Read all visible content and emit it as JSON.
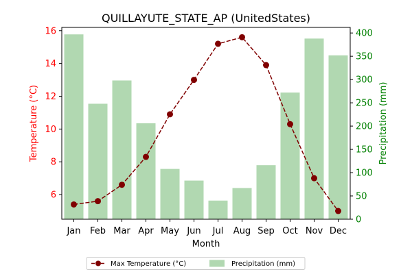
{
  "chart_data": {
    "type": "bar",
    "title": "QUILLAYUTE_STATE_AP (UnitedStates)",
    "xlabel": "Month",
    "ylabel_left": "Temperature (°C)",
    "ylabel_right": "Precipitation (mm)",
    "categories": [
      "Jan",
      "Feb",
      "Mar",
      "Apr",
      "May",
      "Jun",
      "Jul",
      "Aug",
      "Sep",
      "Oct",
      "Nov",
      "Dec"
    ],
    "ylim_left": [
      4.5,
      16.2
    ],
    "yticks_left": [
      6,
      8,
      10,
      12,
      14,
      16
    ],
    "ylim_right": [
      0,
      412
    ],
    "yticks_right": [
      0,
      50,
      100,
      150,
      200,
      250,
      300,
      350,
      400
    ],
    "series": [
      {
        "name": "Max Temperature (°C)",
        "type": "line",
        "axis": "left",
        "color": "#800000",
        "values": [
          5.4,
          5.6,
          6.6,
          8.3,
          10.9,
          13.0,
          15.2,
          15.6,
          13.9,
          10.3,
          7.0,
          5.0
        ]
      },
      {
        "name": "Precipitation (mm)",
        "type": "bar",
        "axis": "right",
        "color": "#b1d8b1",
        "values": [
          397,
          248,
          298,
          206,
          108,
          83,
          40,
          67,
          116,
          272,
          388,
          352
        ]
      }
    ],
    "left_axis_color": "#ff0000",
    "right_axis_color": "#008000",
    "grid": false,
    "legend_position": "bottom-center"
  }
}
